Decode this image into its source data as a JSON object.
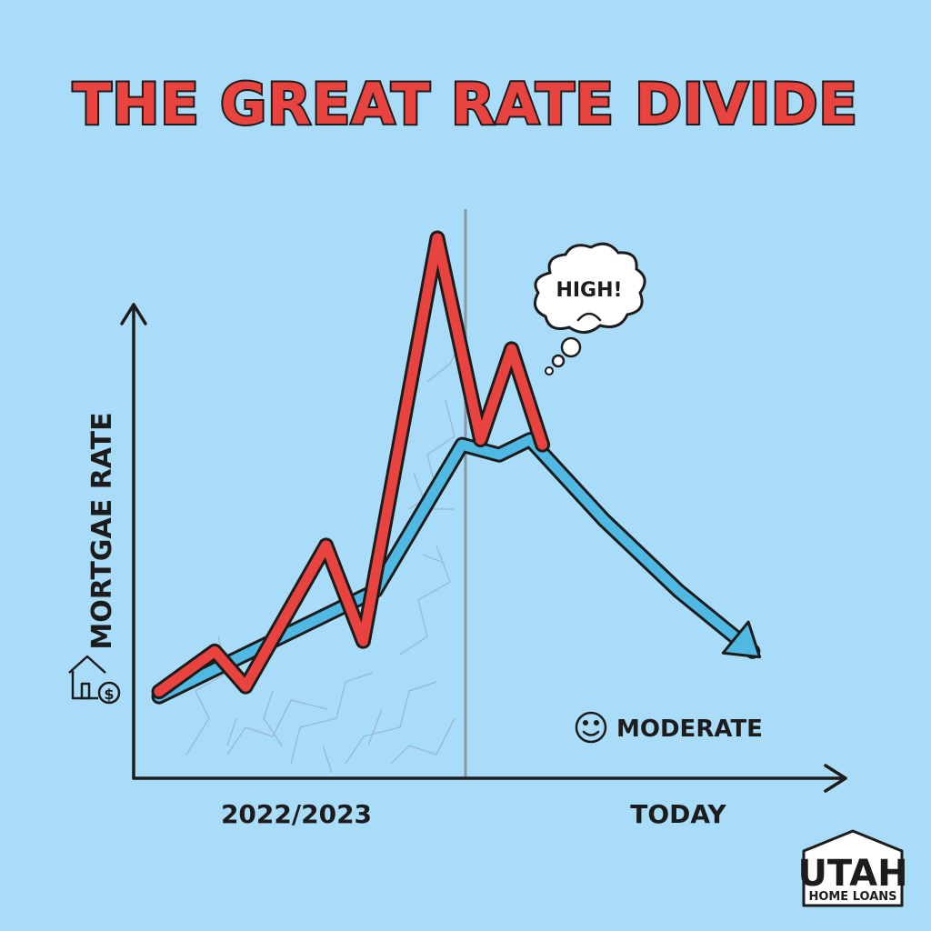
{
  "chart_data": {
    "type": "line",
    "title": "THE GREAT RATE DIVIDE",
    "ylabel": "MORTGAE RATE",
    "x_tick_labels": [
      "2022/2023",
      "TODAY"
    ],
    "series": [
      {
        "color": "#e8433f",
        "points": [
          [
            0.0,
            0.1
          ],
          [
            0.09,
            0.18
          ],
          [
            0.14,
            0.11
          ],
          [
            0.27,
            0.39
          ],
          [
            0.33,
            0.2
          ],
          [
            0.45,
            1.0
          ],
          [
            0.52,
            0.6
          ],
          [
            0.57,
            0.78
          ],
          [
            0.62,
            0.59
          ]
        ]
      },
      {
        "color": "#4fb9e3",
        "points": [
          [
            0.0,
            0.09
          ],
          [
            0.35,
            0.3
          ],
          [
            0.49,
            0.59
          ],
          [
            0.55,
            0.57
          ],
          [
            0.6,
            0.6
          ],
          [
            0.72,
            0.44
          ],
          [
            0.84,
            0.3
          ],
          [
            0.96,
            0.18
          ]
        ]
      }
    ],
    "annotations": {
      "high": "HIGH!",
      "moderate": "MODERATE"
    },
    "colors": {
      "background": "#a9dcf8",
      "title_fill": "#e8433f",
      "red_series": "#e8433f",
      "blue_series": "#4fb9e3",
      "outline": "#1c1c1c"
    }
  },
  "logo": {
    "brand": "UTAH",
    "tagline": "HOME LOANS"
  },
  "icons": {
    "axis_icon": "house-dollar-icon",
    "moderate_icon": "smiley-icon",
    "bubble_icon": "frown-icon"
  }
}
